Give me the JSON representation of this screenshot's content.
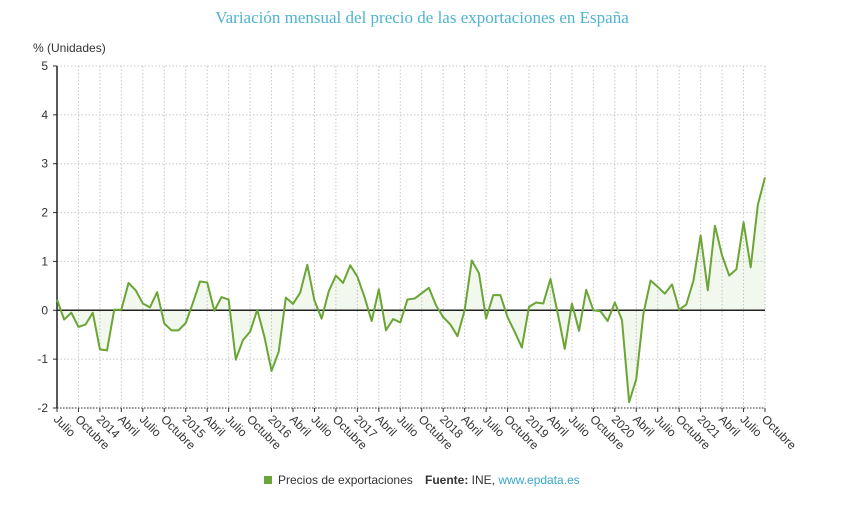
{
  "chart_data": {
    "type": "area",
    "title": "Variación mensual del precio de las exportaciones en España",
    "ylabel": "% (Unidades)",
    "xlabel": "",
    "ylim": [
      -2,
      5
    ],
    "yticks": [
      "5",
      "4",
      "3",
      "2",
      "1",
      "0",
      "-1",
      "-2"
    ],
    "ytick_values": [
      5,
      4,
      3,
      2,
      1,
      0,
      -1,
      -2
    ],
    "xtick_labels": [
      "Julio",
      "Octubre",
      "2014",
      "Abril",
      "Julio",
      "Octubre",
      "2015",
      "Abril",
      "Julio",
      "Octubre",
      "2016",
      "Abril",
      "Julio",
      "Octubre",
      "2017",
      "Abril",
      "Julio",
      "Octubre",
      "2018",
      "Abril",
      "Julio",
      "Octubre",
      "2019",
      "Abril",
      "Julio",
      "Octubre",
      "2020",
      "Abril",
      "Julio",
      "Octubre",
      "2021",
      "Abril",
      "Julio",
      "Octubre"
    ],
    "x_start": "Julio 2013",
    "x_end": "Octubre 2021",
    "frequency": "monthly",
    "grid": true,
    "legend_position": "bottom",
    "series": [
      {
        "name": "Precios de exportaciones",
        "color": "#6aa536",
        "values": [
          0.22,
          -0.19,
          -0.05,
          -0.34,
          -0.29,
          -0.05,
          -0.8,
          -0.82,
          0.01,
          0.01,
          0.56,
          0.41,
          0.14,
          0.06,
          0.37,
          -0.27,
          -0.41,
          -0.41,
          -0.26,
          0.15,
          0.59,
          0.57,
          -0.01,
          0.27,
          0.22,
          -1.01,
          -0.61,
          -0.44,
          0.01,
          -0.54,
          -1.24,
          -0.85,
          0.26,
          0.13,
          0.36,
          0.93,
          0.2,
          -0.17,
          0.39,
          0.71,
          0.56,
          0.92,
          0.69,
          0.27,
          -0.22,
          0.43,
          -0.41,
          -0.18,
          -0.25,
          0.22,
          0.24,
          0.35,
          0.46,
          0.1,
          -0.14,
          -0.29,
          -0.53,
          0.0,
          1.02,
          0.76,
          -0.17,
          0.31,
          0.31,
          -0.14,
          -0.44,
          -0.76,
          0.07,
          0.16,
          0.14,
          0.64,
          -0.05,
          -0.79,
          0.14,
          -0.42,
          0.42,
          0.0,
          -0.02,
          -0.22,
          0.16,
          -0.2,
          -1.88,
          -1.41,
          -0.07,
          0.61,
          0.48,
          0.34,
          0.53,
          0.01,
          0.12,
          0.61,
          1.53,
          0.41,
          1.73,
          1.12,
          0.71,
          0.84,
          1.8,
          0.88,
          2.16,
          2.72
        ]
      }
    ]
  },
  "legend": {
    "label": "Precios de exportaciones"
  },
  "source": {
    "label": "Fuente:",
    "text": " INE, ",
    "link": "www.epdata.es"
  }
}
